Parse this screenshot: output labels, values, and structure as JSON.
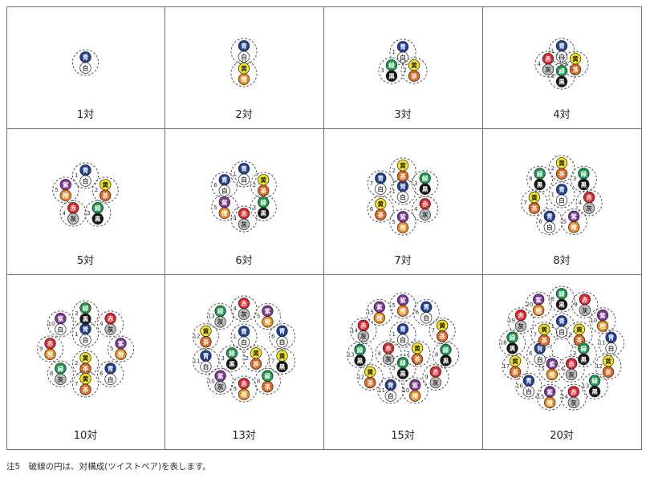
{
  "colors": {
    "青": {
      "fill": "#1f3f9a",
      "text": "#ffffff"
    },
    "白": {
      "fill": "#ffffff",
      "text": "#333333"
    },
    "黄": {
      "fill": "#f4e51a",
      "text": "#222222"
    },
    "橙": {
      "fill": "#f08a1c",
      "text": "#ffffff"
    },
    "緑": {
      "fill": "#179a4a",
      "text": "#ffffff"
    },
    "茶": {
      "fill": "#e2661c",
      "text": "#ffffff"
    },
    "黒": {
      "fill": "#151515",
      "text": "#ffffff"
    },
    "赤": {
      "fill": "#e0242b",
      "text": "#ffffff"
    },
    "灰": {
      "fill": "#bdbdbd",
      "text": "#333333"
    },
    "紫": {
      "fill": "#7d3596",
      "text": "#ffffff"
    }
  },
  "cells": [
    {
      "caption": "1対",
      "pairs": [
        {
          "n": "",
          "a": "青",
          "b": "白"
        }
      ]
    },
    {
      "caption": "2対",
      "pairs": [
        {
          "n": "",
          "a": "青",
          "b": "白"
        },
        {
          "n": "",
          "a": "黄",
          "b": "橙"
        }
      ]
    },
    {
      "caption": "3対",
      "pairs": [
        {
          "n": "1",
          "a": "青",
          "b": "白"
        },
        {
          "n": "2",
          "a": "黄",
          "b": "茶"
        },
        {
          "n": "3",
          "a": "緑",
          "b": "黒"
        }
      ]
    },
    {
      "caption": "4対",
      "pairs": [
        {
          "n": "1",
          "a": "青",
          "b": "白"
        },
        {
          "n": "2",
          "a": "黄",
          "b": "茶"
        },
        {
          "n": "3",
          "a": "緑",
          "b": "黒"
        },
        {
          "n": "4",
          "a": "赤",
          "b": "灰"
        }
      ]
    },
    {
      "caption": "5対",
      "pairs": [
        {
          "n": "1",
          "a": "青",
          "b": "白"
        },
        {
          "n": "2",
          "a": "黄",
          "b": "茶"
        },
        {
          "n": "3",
          "a": "緑",
          "b": "黒"
        },
        {
          "n": "4",
          "a": "赤",
          "b": "灰"
        },
        {
          "n": "5",
          "a": "紫",
          "b": "橙"
        }
      ]
    },
    {
      "caption": "6対",
      "pairs": [
        {
          "n": "1",
          "a": "青",
          "b": "白"
        },
        {
          "n": "2",
          "a": "黄",
          "b": "茶"
        },
        {
          "n": "3",
          "a": "緑",
          "b": "黒"
        },
        {
          "n": "4",
          "a": "赤",
          "b": "灰"
        },
        {
          "n": "5",
          "a": "紫",
          "b": "橙"
        },
        {
          "n": "6",
          "a": "青",
          "b": "白"
        }
      ]
    },
    {
      "caption": "7対",
      "pairs": [
        {
          "n": "1",
          "a": "青",
          "b": "白"
        },
        {
          "n": "2",
          "a": "黄",
          "b": "茶"
        },
        {
          "n": "3",
          "a": "緑",
          "b": "黒"
        },
        {
          "n": "4",
          "a": "赤",
          "b": "灰"
        },
        {
          "n": "5",
          "a": "紫",
          "b": "橙"
        },
        {
          "n": "6",
          "a": "黄",
          "b": "茶"
        },
        {
          "n": "7",
          "a": "青",
          "b": "白"
        }
      ]
    },
    {
      "caption": "8対",
      "pairs": [
        {
          "n": "1",
          "a": "青",
          "b": "白"
        },
        {
          "n": "2",
          "a": "黄",
          "b": "茶"
        },
        {
          "n": "3",
          "a": "緑",
          "b": "黒"
        },
        {
          "n": "4",
          "a": "赤",
          "b": "灰"
        },
        {
          "n": "5",
          "a": "紫",
          "b": "橙"
        },
        {
          "n": "6",
          "a": "青",
          "b": "白"
        },
        {
          "n": "7",
          "a": "黄",
          "b": "茶"
        },
        {
          "n": "8",
          "a": "緑",
          "b": "黒"
        }
      ]
    },
    {
      "caption": "10対",
      "pairs": [
        {
          "n": "1",
          "a": "青",
          "b": "白"
        },
        {
          "n": "2",
          "a": "黄",
          "b": "茶"
        },
        {
          "n": "3",
          "a": "緑",
          "b": "黒"
        },
        {
          "n": "4",
          "a": "赤",
          "b": "灰"
        },
        {
          "n": "5",
          "a": "紫",
          "b": "橙"
        },
        {
          "n": "6",
          "a": "青",
          "b": "白"
        },
        {
          "n": "7",
          "a": "黄",
          "b": "茶"
        },
        {
          "n": "8",
          "a": "緑",
          "b": "灰"
        },
        {
          "n": "9",
          "a": "赤",
          "b": "橙"
        },
        {
          "n": "10",
          "a": "紫",
          "b": "白"
        }
      ]
    },
    {
      "caption": "13対",
      "pairs": [
        {
          "n": "1",
          "a": "青",
          "b": "白"
        },
        {
          "n": "2",
          "a": "黄",
          "b": "茶"
        },
        {
          "n": "3",
          "a": "緑",
          "b": "黒"
        },
        {
          "n": "4",
          "a": "赤",
          "b": "灰"
        },
        {
          "n": "5",
          "a": "紫",
          "b": "橙"
        },
        {
          "n": "6",
          "a": "青",
          "b": "白"
        },
        {
          "n": "7",
          "a": "黄",
          "b": "黒"
        },
        {
          "n": "8",
          "a": "緑",
          "b": "茶"
        },
        {
          "n": "9",
          "a": "赤",
          "b": "橙"
        },
        {
          "n": "10",
          "a": "紫",
          "b": "灰"
        },
        {
          "n": "11",
          "a": "青",
          "b": "白"
        },
        {
          "n": "12",
          "a": "黄",
          "b": "茶"
        },
        {
          "n": "13",
          "a": "緑",
          "b": "灰"
        }
      ]
    },
    {
      "caption": "15対",
      "pairs": [
        {
          "n": "1",
          "a": "青",
          "b": "白"
        },
        {
          "n": "2",
          "a": "黄",
          "b": "茶"
        },
        {
          "n": "3",
          "a": "緑",
          "b": "黒"
        },
        {
          "n": "4",
          "a": "赤",
          "b": "灰"
        },
        {
          "n": "5",
          "a": "紫",
          "b": "橙"
        },
        {
          "n": "6",
          "a": "青",
          "b": "白"
        },
        {
          "n": "7",
          "a": "黄",
          "b": "茶"
        },
        {
          "n": "8",
          "a": "緑",
          "b": "黒"
        },
        {
          "n": "9",
          "a": "赤",
          "b": "灰"
        },
        {
          "n": "10",
          "a": "紫",
          "b": "橙"
        },
        {
          "n": "11",
          "a": "青",
          "b": "白"
        },
        {
          "n": "12",
          "a": "黄",
          "b": "茶"
        },
        {
          "n": "13",
          "a": "緑",
          "b": "黒"
        },
        {
          "n": "14",
          "a": "赤",
          "b": "灰"
        },
        {
          "n": "15",
          "a": "紫",
          "b": "橙"
        }
      ]
    },
    {
      "caption": "20対",
      "pairs": [
        {
          "n": "1",
          "a": "青",
          "b": "白"
        },
        {
          "n": "2",
          "a": "黄",
          "b": "茶"
        },
        {
          "n": "3",
          "a": "緑",
          "b": "黒"
        },
        {
          "n": "4",
          "a": "赤",
          "b": "灰"
        },
        {
          "n": "5",
          "a": "紫",
          "b": "橙"
        },
        {
          "n": "6",
          "a": "青",
          "b": "白"
        },
        {
          "n": "7",
          "a": "黄",
          "b": "茶"
        },
        {
          "n": "8",
          "a": "緑",
          "b": "黒"
        },
        {
          "n": "9",
          "a": "赤",
          "b": "灰"
        },
        {
          "n": "10",
          "a": "紫",
          "b": "橙"
        },
        {
          "n": "11",
          "a": "青",
          "b": "白"
        },
        {
          "n": "12",
          "a": "黄",
          "b": "茶"
        },
        {
          "n": "13",
          "a": "緑",
          "b": "黒"
        },
        {
          "n": "14",
          "a": "赤",
          "b": "灰"
        },
        {
          "n": "15",
          "a": "紫",
          "b": "橙"
        },
        {
          "n": "16",
          "a": "青",
          "b": "白"
        },
        {
          "n": "17",
          "a": "黄",
          "b": "茶"
        },
        {
          "n": "18",
          "a": "緑",
          "b": "黒"
        },
        {
          "n": "19",
          "a": "赤",
          "b": "灰"
        },
        {
          "n": "20",
          "a": "紫",
          "b": "橙"
        }
      ]
    }
  ],
  "footnote": "注5　破線の円は、対構成(ツイストペア)を表します。"
}
